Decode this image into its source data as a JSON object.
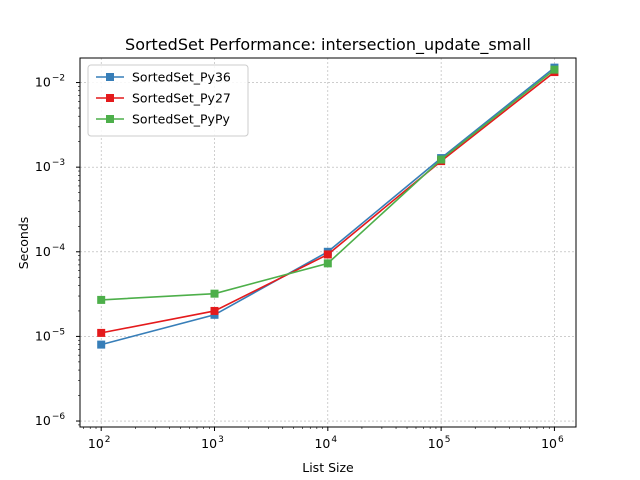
{
  "chart_data": {
    "type": "line",
    "title": "SortedSet Performance: intersection_update_small",
    "xlabel": "List Size",
    "ylabel": "Seconds",
    "xscale": "log",
    "yscale": "log",
    "xlim": [
      65,
      1550000
    ],
    "ylim": [
      8.5e-07,
      0.0195
    ],
    "x": [
      100,
      1000,
      10000,
      100000,
      1000000
    ],
    "xticks": [
      {
        "value": 100,
        "base": "10",
        "exp": "2"
      },
      {
        "value": 1000,
        "base": "10",
        "exp": "3"
      },
      {
        "value": 10000,
        "base": "10",
        "exp": "4"
      },
      {
        "value": 100000,
        "base": "10",
        "exp": "5"
      },
      {
        "value": 1000000,
        "base": "10",
        "exp": "6"
      }
    ],
    "yticks": [
      {
        "value": 1e-06,
        "base": "10",
        "exp": "−6"
      },
      {
        "value": 1e-05,
        "base": "10",
        "exp": "−5"
      },
      {
        "value": 0.0001,
        "base": "10",
        "exp": "−4"
      },
      {
        "value": 0.001,
        "base": "10",
        "exp": "−3"
      },
      {
        "value": 0.01,
        "base": "10",
        "exp": "−2"
      }
    ],
    "grid": true,
    "legend_position": "top-left",
    "series": [
      {
        "name": "SortedSet_Py36",
        "color": "#377eb8",
        "marker": "square",
        "values": [
          8e-06,
          1.8e-05,
          0.0001,
          0.00128,
          0.015
        ]
      },
      {
        "name": "SortedSet_Py27",
        "color": "#e41a1c",
        "marker": "square",
        "values": [
          1.1e-05,
          2e-05,
          9.3e-05,
          0.00118,
          0.0133
        ]
      },
      {
        "name": "SortedSet_PyPy",
        "color": "#4daf4a",
        "marker": "square",
        "values": [
          2.7e-05,
          3.2e-05,
          7.3e-05,
          0.00123,
          0.0142
        ]
      }
    ]
  }
}
